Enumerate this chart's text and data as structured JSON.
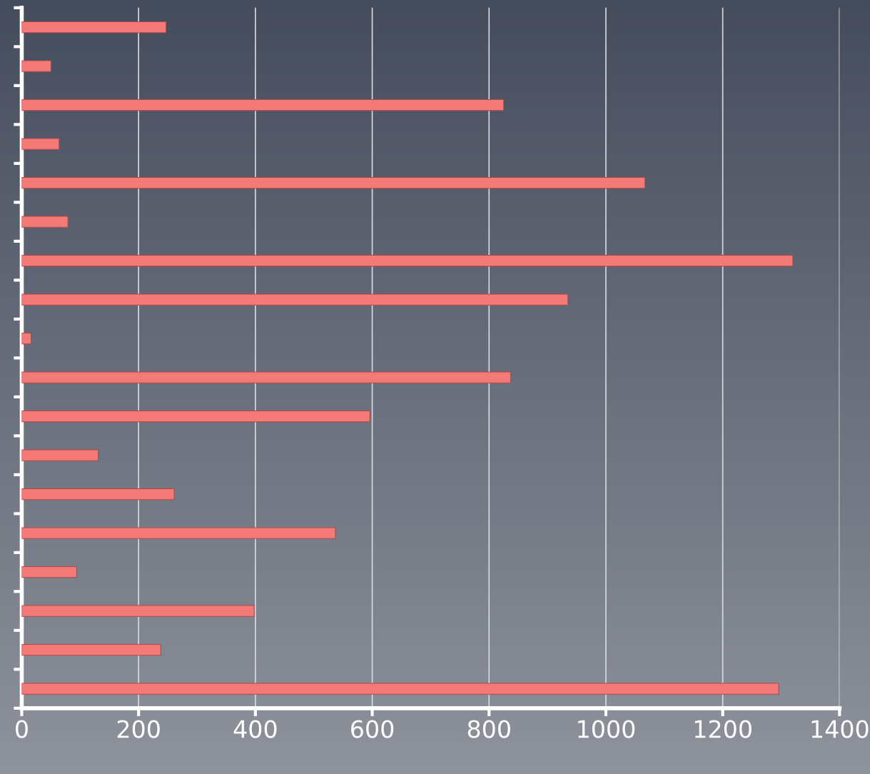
{
  "chart_data": {
    "type": "bar",
    "orientation": "horizontal",
    "categories": [
      null,
      null,
      null,
      null,
      null,
      null,
      null,
      null,
      null,
      null,
      null,
      null,
      null,
      null,
      null,
      null,
      null,
      null
    ],
    "values": [
      247,
      50,
      825,
      64,
      1067,
      79,
      1320,
      935,
      16,
      837,
      596,
      131,
      261,
      537,
      94,
      398,
      238,
      1296
    ],
    "color": "#f47a78",
    "xlim": [
      0,
      1400
    ],
    "xticks": [
      0,
      200,
      400,
      600,
      800,
      1000,
      1200,
      1400
    ],
    "grid": "x",
    "tick_labels": "x"
  }
}
